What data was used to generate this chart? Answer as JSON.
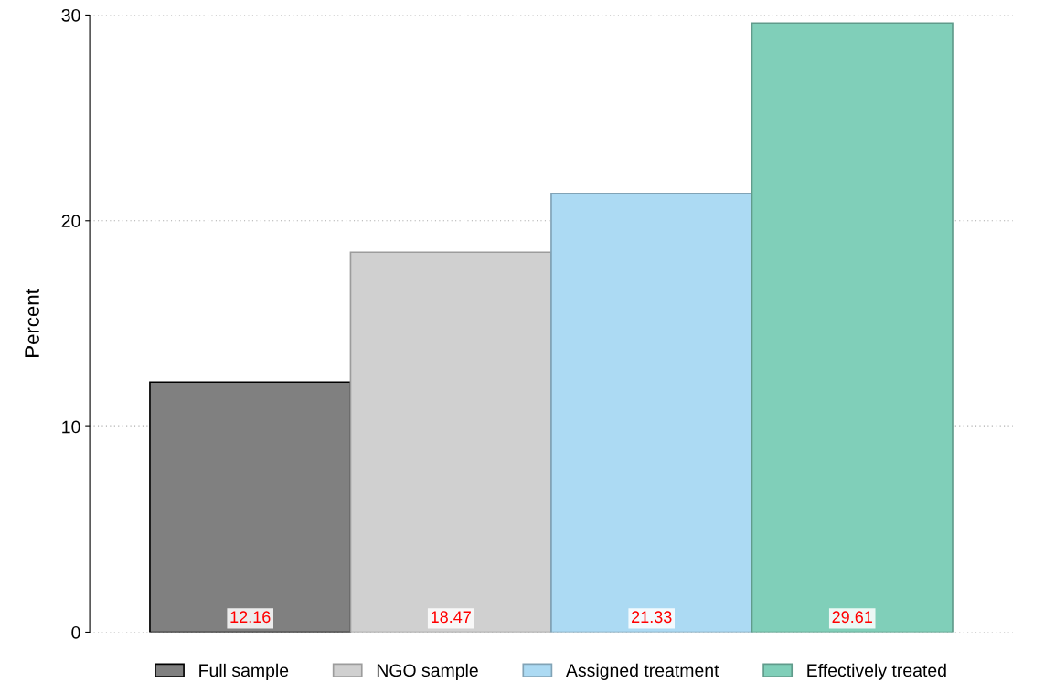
{
  "chart_data": {
    "type": "bar",
    "ylabel": "Percent",
    "categories": [
      null,
      null,
      null,
      null
    ],
    "series": [
      {
        "name": "Full sample",
        "color": "#808080",
        "values": [
          12.16,
          null,
          null,
          null
        ]
      },
      {
        "name": "NGO sample",
        "color": "#d0d0d0",
        "values": [
          null,
          18.47,
          null,
          null
        ]
      },
      {
        "name": "Assigned treatment",
        "color": "#acdaf3",
        "values": [
          null,
          null,
          21.33,
          null
        ]
      },
      {
        "name": "Effectively treated",
        "color": "#80cfb9",
        "values": [
          null,
          null,
          null,
          29.61
        ]
      }
    ],
    "ylim": [
      0,
      30
    ],
    "yticks": [
      0,
      10,
      20,
      30
    ],
    "grid": "y",
    "legend": "bottom",
    "data_labels": true
  }
}
